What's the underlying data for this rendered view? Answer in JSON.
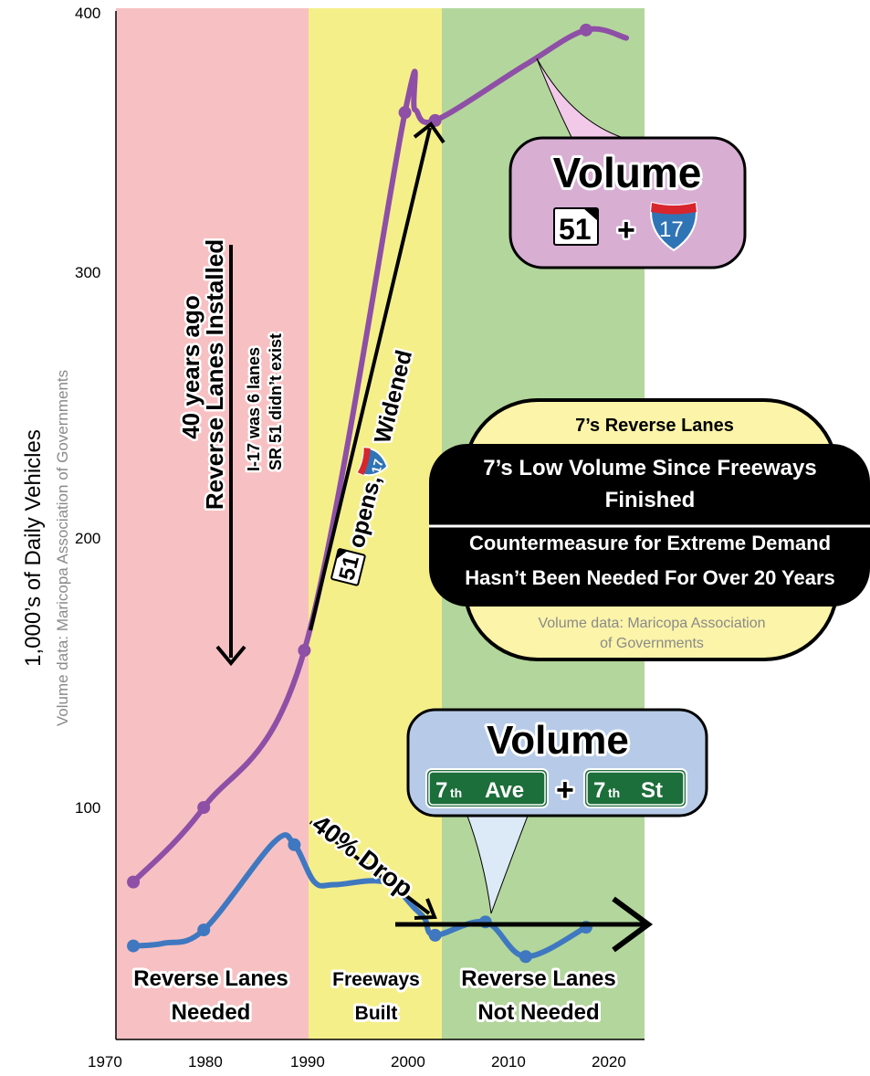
{
  "chart_data": {
    "type": "line",
    "x_ticks": [
      "1970",
      "1980",
      "1990",
      "2000",
      "2020"
    ],
    "x_tick_2010": "2010",
    "x_tick_values": [
      1970,
      1980,
      1990,
      2000,
      2010,
      2020
    ],
    "y_ticks": [
      "100",
      "200",
      "300",
      "400"
    ],
    "y_tick_values": [
      100,
      200,
      300,
      400
    ],
    "xlim": [
      1969,
      2024
    ],
    "ylim": [
      15,
      400
    ],
    "ylabel": "1,000’s of Daily Vehicles",
    "ylabel_sub": "Volume data: Maricopa Association of Governments",
    "colors": {
      "band_needed": "#f7c1c3",
      "band_built": "#f5ef8a",
      "band_not_needed": "#b3d69c",
      "freeway_line": "#8e4fa6",
      "surface_line": "#3f78c0",
      "callout_freeway": "#d8aed3",
      "callout_surface": "#b7cbe8",
      "info_box": "#fbf4a9"
    },
    "bands": [
      {
        "label_line1": "Reverse Lanes",
        "label_line2": "Needed",
        "x_start": 1969,
        "x_end": 1990
      },
      {
        "label_line1": "Freeways",
        "label_line2": "Built",
        "x_start": 1990,
        "x_end": 2003
      },
      {
        "label_line1": "Reverse Lanes",
        "label_line2": "Not Needed",
        "x_start": 2003,
        "x_end": 2024
      }
    ],
    "series": [
      {
        "key": "freeways",
        "x": [
          1973,
          1980,
          1990,
          2000,
          2001,
          2003,
          2012,
          2018,
          2022
        ],
        "y": [
          72,
          100,
          159,
          361,
          362,
          358,
          379,
          392,
          389
        ],
        "markers": [
          0,
          1,
          2,
          3,
          5,
          7
        ]
      },
      {
        "key": "surface",
        "x": [
          1973,
          1976,
          1980,
          1987,
          1989,
          1991,
          1993,
          1998,
          2001,
          2002,
          2003,
          2008,
          2012,
          2018
        ],
        "y": [
          48,
          49,
          54,
          87,
          86,
          72,
          71,
          72,
          62,
          58,
          52,
          57,
          44,
          55
        ],
        "markers": [
          0,
          2,
          4,
          10,
          11,
          12,
          13
        ]
      }
    ],
    "annotations": {
      "vertical_arrow": {
        "x": 1982,
        "y_from": 310,
        "y_to": 66,
        "line1": "40 years ago",
        "line2": "Reverse Lanes Installed",
        "line3": "I-17 was 6 lanes",
        "line4": "SR 51 didn’t exist"
      },
      "diagonal_arrow": {
        "x_from": 1990,
        "y_from": 165,
        "x_to": 2002,
        "y_to": 357,
        "route_a": "51",
        "text_a": "opens,",
        "route_b": "17",
        "text_b": "Widened"
      },
      "drop_arrow": {
        "x_from": 1990,
        "y_from": 82,
        "x_to": 2003,
        "y_to": 54,
        "text": "40% Drop"
      },
      "flat_arrow": {
        "x_from": 1997,
        "x_to": 2024,
        "y": 53
      }
    },
    "callouts": {
      "freeway": {
        "title": "Volume",
        "route_a": "51",
        "plus": "+",
        "route_b": "17"
      },
      "surface": {
        "title": "Volume",
        "sign_a_main": "7",
        "sign_a_sup": "th",
        "sign_a_word": "Ave",
        "plus": "+",
        "sign_b_main": "7",
        "sign_b_sup": "th",
        "sign_b_word": "St"
      }
    },
    "info_box": {
      "header": "7’s Reverse Lanes",
      "line1": "7’s Low Volume Since Freeways",
      "line2": "Finished",
      "line3": "Countermeasure for Extreme Demand",
      "line4": "Hasn’t Been Needed For Over 20 Years",
      "source1": "Volume data: Maricopa Association",
      "source2": "of Governments"
    }
  }
}
